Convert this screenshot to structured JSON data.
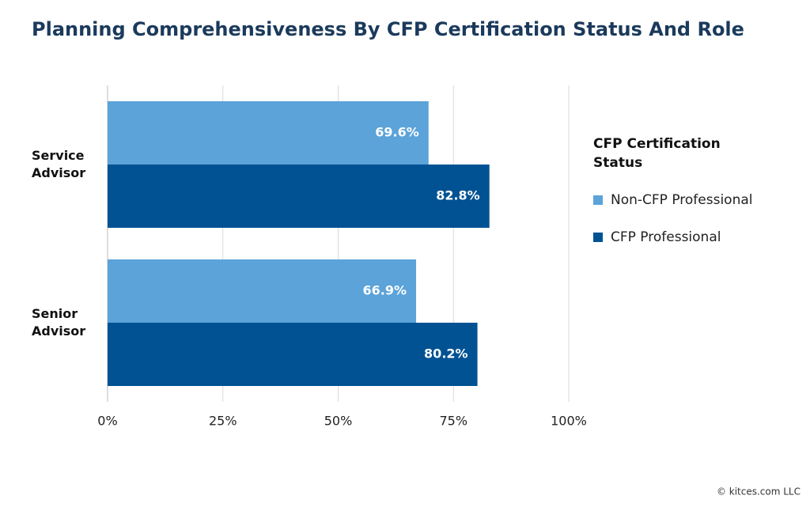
{
  "chart_data": {
    "type": "bar",
    "orientation": "horizontal",
    "title": "Planning Comprehensiveness By CFP Certification Status And Role",
    "categories": [
      "Service Advisor",
      "Senior Advisor"
    ],
    "series": [
      {
        "name": "Non-CFP Professional",
        "color": "#5ba3d9",
        "values": [
          69.6,
          66.9
        ],
        "value_labels": [
          "69.6%",
          "66.9%"
        ]
      },
      {
        "name": "CFP Professional",
        "color": "#005293",
        "values": [
          82.8,
          80.2
        ],
        "value_labels": [
          "82.8%",
          "80.2%"
        ]
      }
    ],
    "xlim": [
      0,
      100
    ],
    "xticks": [
      {
        "value": 0,
        "label": "0%"
      },
      {
        "value": 25,
        "label": "25%"
      },
      {
        "value": 50,
        "label": "50%"
      },
      {
        "value": 75,
        "label": "75%"
      },
      {
        "value": 100,
        "label": "100%"
      }
    ],
    "grid": true,
    "legend_title": "CFP Certification Status",
    "legend_position": "right",
    "credit": "© kitces.com LLC"
  }
}
